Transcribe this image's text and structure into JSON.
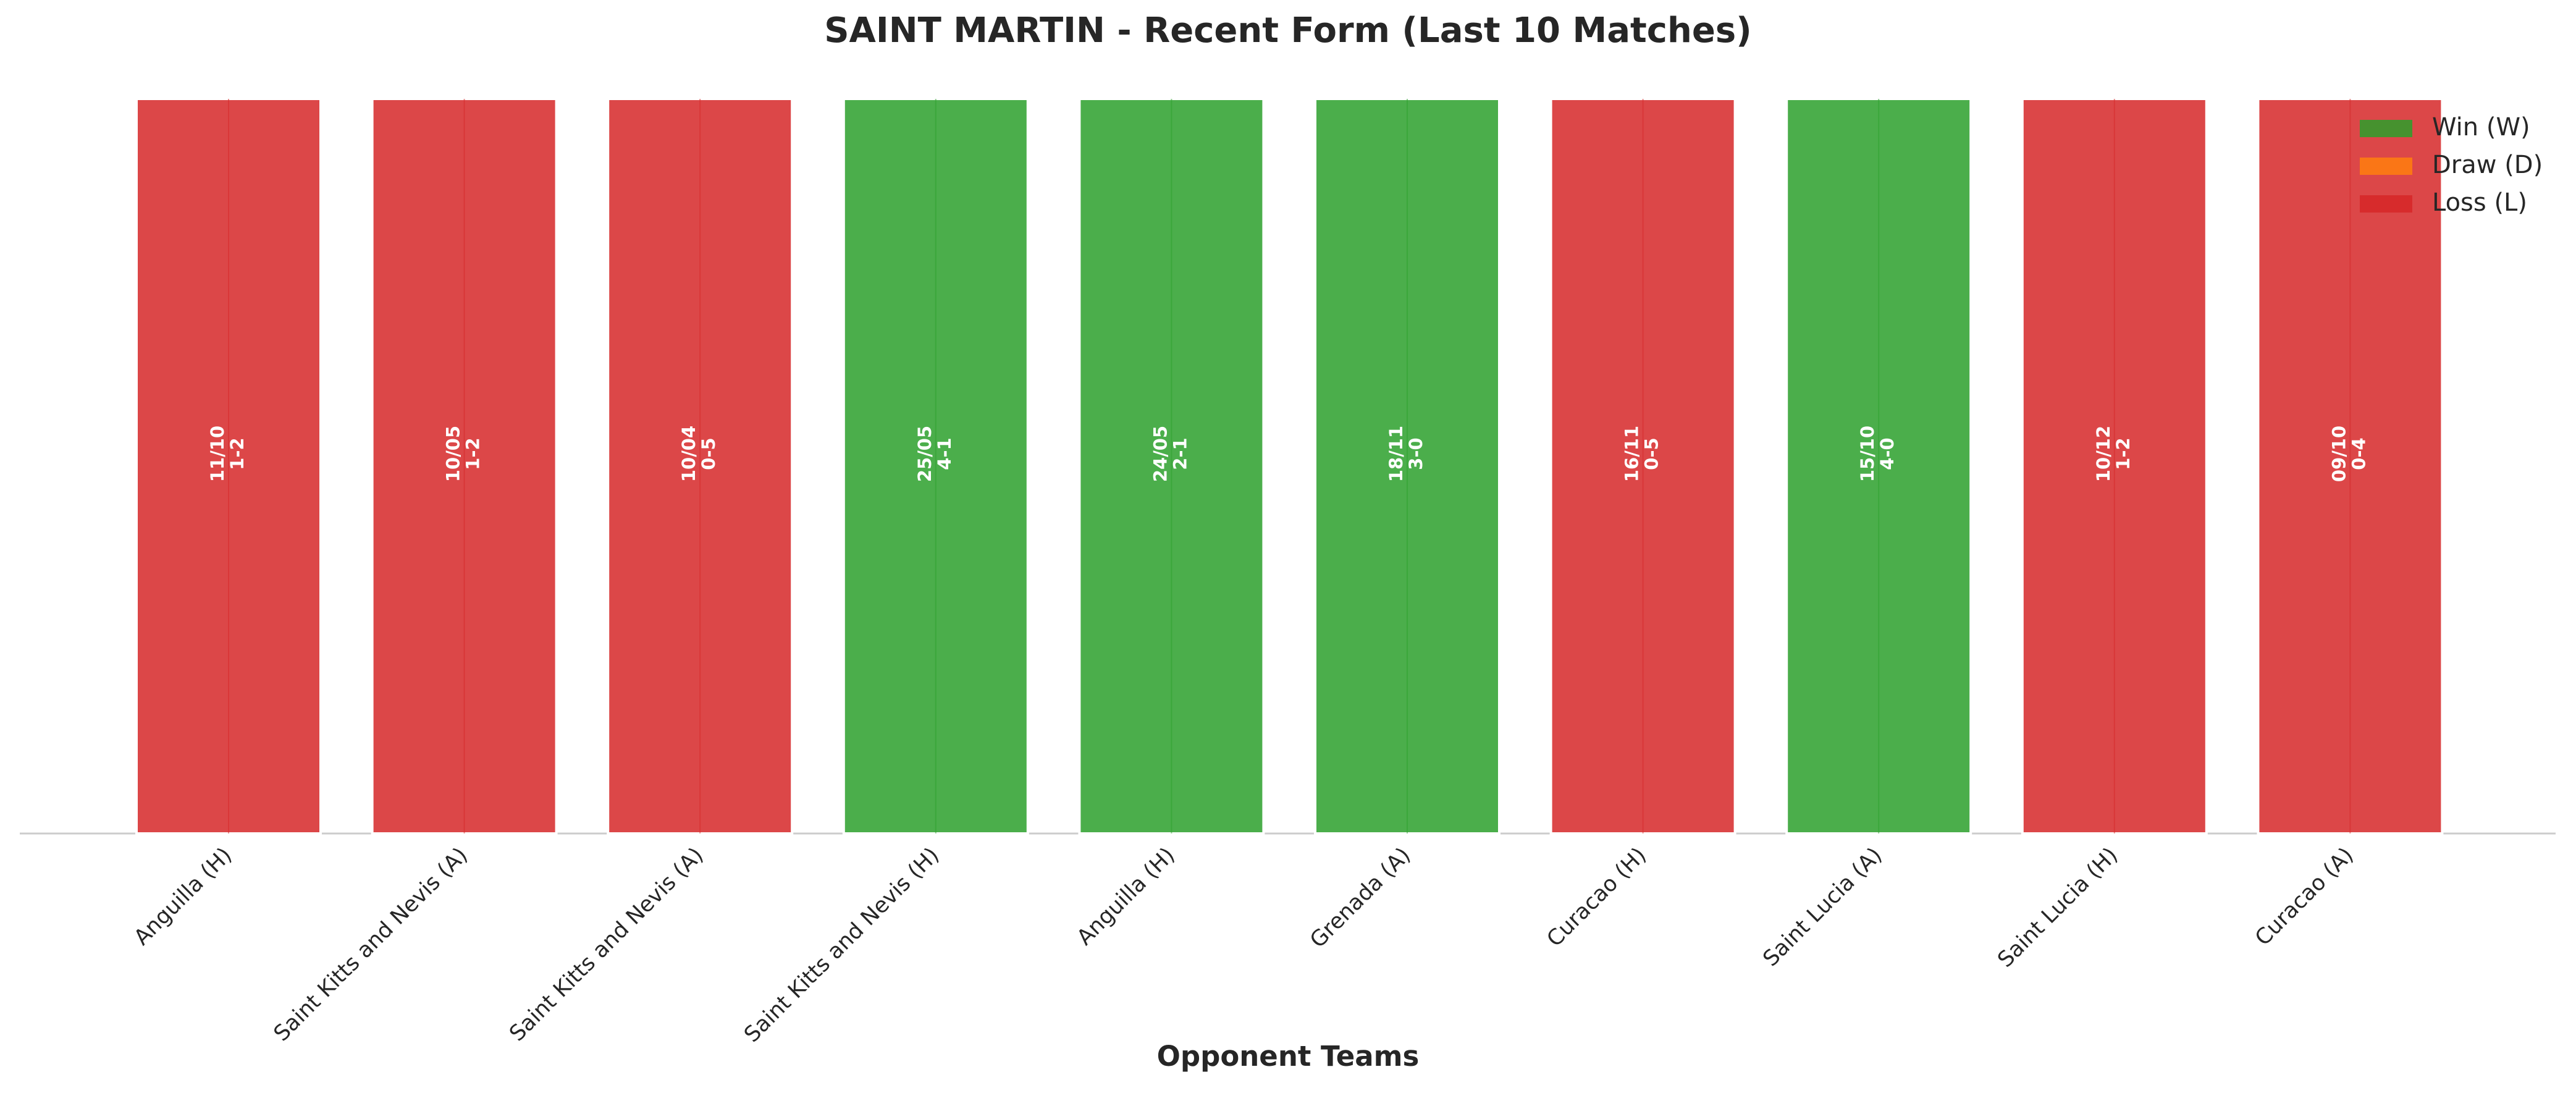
{
  "chart_data": {
    "type": "bar",
    "title": "SAINT MARTIN - Recent Form (Last 10 Matches)",
    "x_label": "Opponent Teams",
    "categories": [
      "Anguilla (H)",
      "Saint Kitts and Nevis (A)",
      "Saint Kitts and Nevis (A)",
      "Saint Kitts and Nevis (H)",
      "Anguilla (H)",
      "Grenada (A)",
      "Curacao (H)",
      "Saint Lucia (A)",
      "Saint Lucia (H)",
      "Curacao (A)"
    ],
    "values": [
      1,
      1,
      1,
      1,
      1,
      1,
      1,
      1,
      1,
      1
    ],
    "colors": [
      "#d62728",
      "#d62728",
      "#d62728",
      "#2ca02c",
      "#2ca02c",
      "#2ca02c",
      "#d62728",
      "#2ca02c",
      "#d62728",
      "#d62728"
    ],
    "dates": [
      "11/10",
      "10/05",
      "10/04",
      "25/05",
      "24/05",
      "18/11",
      "16/11",
      "15/10",
      "10/12",
      "09/10"
    ],
    "scores": [
      "1-2",
      "1-2",
      "0-5",
      "4-1",
      "2-1",
      "3-0",
      "0-5",
      "4-0",
      "1-2",
      "0-4"
    ],
    "ylim": [
      0,
      1
    ],
    "legend": [
      {
        "name": "Win (W)",
        "color": "#2ca02c"
      },
      {
        "name": "Draw (D)",
        "color": "#ff7f0e"
      },
      {
        "name": "Loss (L)",
        "color": "#d62728"
      }
    ],
    "legend_position": "upper right"
  }
}
